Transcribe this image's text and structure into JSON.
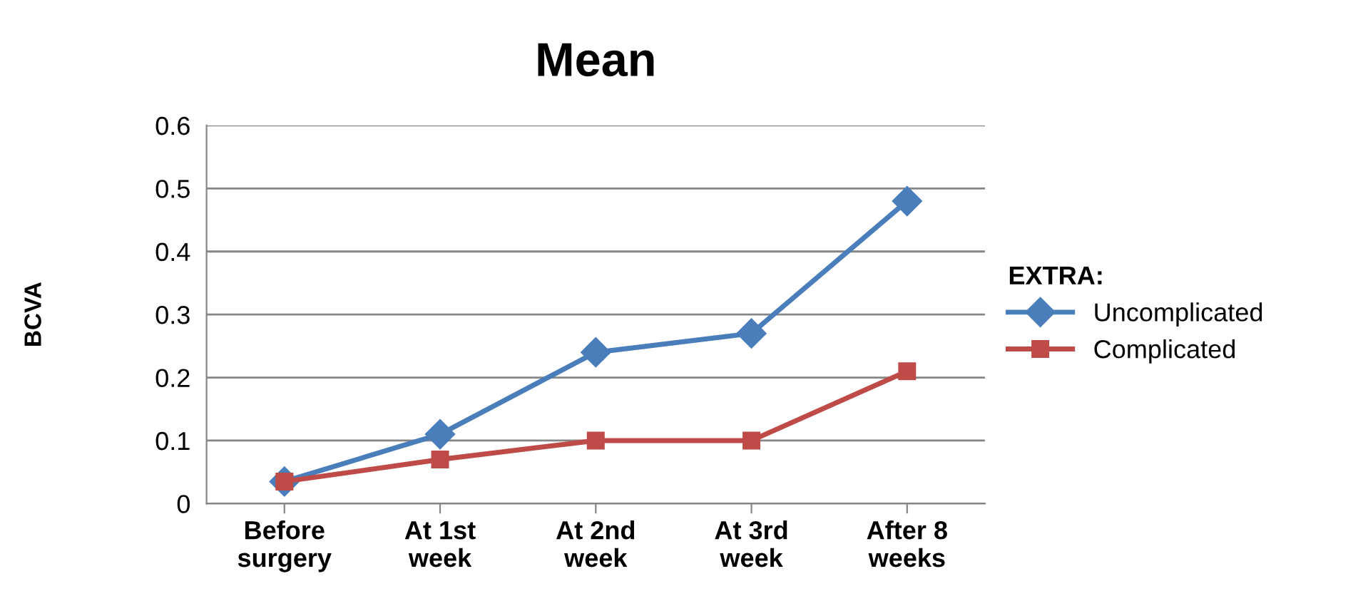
{
  "chart_data": {
    "type": "line",
    "title": "Mean",
    "ylabel": "BCVA",
    "legend_title": "EXTRA:",
    "categories": [
      "Before\nsurgery",
      "At 1st\nweek",
      "At 2nd\nweek",
      "At 3rd\nweek",
      "After 8\nweeks"
    ],
    "series": [
      {
        "name": "Uncomplicated",
        "color": "#4a7ebb",
        "marker": "diamond",
        "values": [
          0.035,
          0.11,
          0.24,
          0.27,
          0.48
        ]
      },
      {
        "name": "Complicated",
        "color": "#be4b48",
        "marker": "square",
        "values": [
          0.035,
          0.07,
          0.1,
          0.1,
          0.21
        ]
      }
    ],
    "ylim": [
      0,
      0.6
    ],
    "yticks": [
      0,
      0.1,
      0.2,
      0.3,
      0.4,
      0.5,
      0.6
    ],
    "grid": "y",
    "legend": "right",
    "line_style": "solid"
  }
}
